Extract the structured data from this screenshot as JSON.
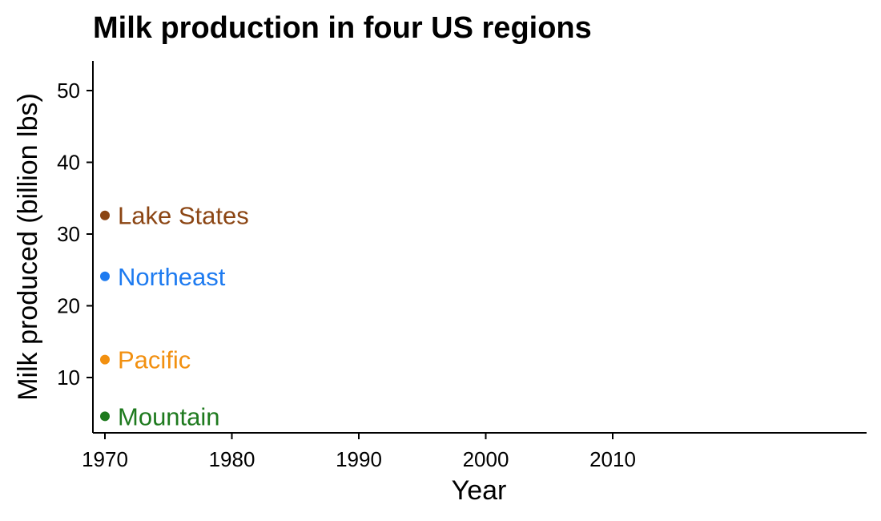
{
  "chart_data": {
    "type": "scatter",
    "title": "Milk production in four US regions",
    "xlabel": "Year",
    "ylabel": "Milk produced (billion lbs)",
    "xlim": [
      1969,
      2030
    ],
    "ylim": [
      2.5,
      54
    ],
    "xticks": [
      1970,
      1980,
      1990,
      2000,
      2010
    ],
    "yticks": [
      10,
      20,
      30,
      40,
      50
    ],
    "grid": false,
    "legend": "direct labels next to points",
    "series": [
      {
        "name": "Lake States",
        "color": "#8B4513",
        "x": [
          1970
        ],
        "y": [
          32.6
        ]
      },
      {
        "name": "Northeast",
        "color": "#1E7BF0",
        "x": [
          1970
        ],
        "y": [
          24.1
        ]
      },
      {
        "name": "Pacific",
        "color": "#F29010",
        "x": [
          1970
        ],
        "y": [
          12.5
        ]
      },
      {
        "name": "Mountain",
        "color": "#1E7A1E",
        "x": [
          1970
        ],
        "y": [
          4.6
        ]
      }
    ]
  }
}
